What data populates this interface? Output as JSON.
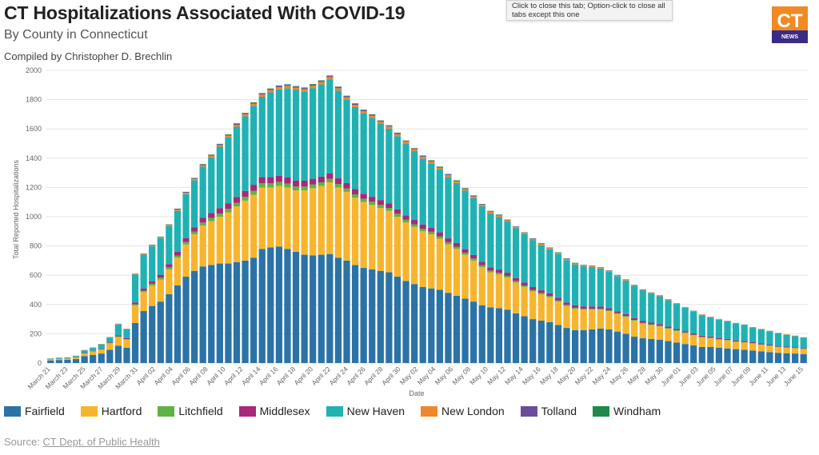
{
  "header": {
    "title": "CT Hospitalizations Associated With COVID-19",
    "subtitle": "By County in Connecticut",
    "credit": "Compiled by Christopher D. Brechlin"
  },
  "browser_tooltip": {
    "text": "Click to close this tab; Option-click to close all tabs except this one"
  },
  "logo": {
    "letters": "CT",
    "tagline": "NEWS",
    "colors": {
      "top": "#f08a24",
      "bottom": "#3b2a86"
    }
  },
  "source": {
    "prefix": "Source: ",
    "link_text": "CT Dept. of Public Health"
  },
  "chart_data": {
    "type": "bar",
    "stacked": true,
    "xlabel": "Date",
    "ylabel": "Total Reported Hospitalizations",
    "ylim": [
      0,
      2000
    ],
    "yticks": [
      0,
      200,
      400,
      600,
      800,
      1000,
      1200,
      1400,
      1600,
      1800,
      2000
    ],
    "grid": true,
    "legend_position": "bottom",
    "tick_labels": [
      "March 21",
      "March 23",
      "March 25",
      "March 27",
      "March 29",
      "March 31",
      "April 02",
      "April 04",
      "April 06",
      "April 08",
      "April 10",
      "April 12",
      "April 14",
      "April 16",
      "April 18",
      "April 20",
      "April 22",
      "April 24",
      "April 26",
      "April 28",
      "April 30",
      "May 02",
      "May 04",
      "May 06",
      "May 08",
      "May 10",
      "May 12",
      "May 14",
      "May 16",
      "May 18",
      "May 20",
      "May 22",
      "May 24",
      "May 26",
      "May 28",
      "May 30",
      "June 01",
      "June 03",
      "June 05",
      "June 07",
      "June 09",
      "June 11",
      "June 13",
      "June 15"
    ],
    "series": [
      {
        "name": "Fairfield",
        "color": "#2b73a6",
        "values": [
          18,
          21,
          22,
          27,
          48,
          56,
          65,
          90,
          118,
          105,
          274,
          355,
          390,
          420,
          470,
          530,
          590,
          630,
          660,
          670,
          680,
          680,
          690,
          700,
          720,
          780,
          790,
          795,
          780,
          760,
          740,
          735,
          740,
          745,
          720,
          700,
          670,
          650,
          640,
          630,
          620,
          590,
          560,
          540,
          520,
          510,
          500,
          480,
          460,
          440,
          420,
          395,
          380,
          375,
          365,
          340,
          320,
          300,
          290,
          280,
          260,
          240,
          225,
          225,
          230,
          235,
          230,
          215,
          200,
          180,
          170,
          165,
          160,
          150,
          140,
          130,
          120,
          110,
          110,
          105,
          100,
          95,
          90,
          85,
          80,
          75,
          70,
          67,
          65,
          60
        ]
      },
      {
        "name": "Hartford",
        "color": "#f7b52e",
        "values": [
          6,
          7,
          8,
          10,
          18,
          22,
          27,
          45,
          60,
          55,
          120,
          130,
          140,
          150,
          170,
          190,
          220,
          250,
          280,
          300,
          320,
          350,
          380,
          410,
          430,
          420,
          410,
          415,
          420,
          420,
          440,
          460,
          470,
          490,
          480,
          470,
          460,
          450,
          440,
          430,
          420,
          410,
          400,
          390,
          380,
          370,
          350,
          330,
          320,
          300,
          280,
          260,
          240,
          230,
          220,
          210,
          200,
          190,
          180,
          170,
          160,
          150,
          145,
          140,
          135,
          130,
          125,
          120,
          115,
          110,
          100,
          95,
          90,
          85,
          80,
          75,
          70,
          65,
          60,
          55,
          55,
          50,
          50,
          48,
          45,
          43,
          40,
          38,
          36,
          35
        ]
      },
      {
        "name": "Litchfield",
        "color": "#5fb346",
        "values": [
          1,
          1,
          1,
          1,
          2,
          2,
          3,
          4,
          5,
          4,
          8,
          10,
          12,
          13,
          14,
          15,
          17,
          18,
          20,
          22,
          22,
          24,
          25,
          26,
          27,
          28,
          28,
          28,
          27,
          26,
          26,
          25,
          25,
          24,
          24,
          23,
          23,
          22,
          22,
          21,
          20,
          20,
          19,
          18,
          18,
          17,
          16,
          16,
          15,
          14,
          14,
          13,
          12,
          12,
          11,
          11,
          10,
          10,
          9,
          9,
          8,
          8,
          8,
          7,
          7,
          7,
          6,
          6,
          6,
          5,
          5,
          5,
          5,
          4,
          4,
          4,
          4,
          4,
          3,
          3,
          3,
          3,
          3,
          3,
          3,
          2,
          2,
          2,
          2,
          2
        ]
      },
      {
        "name": "Middlesex",
        "color": "#a8287a",
        "values": [
          1,
          1,
          1,
          2,
          3,
          3,
          4,
          5,
          6,
          6,
          12,
          15,
          17,
          20,
          22,
          25,
          27,
          30,
          32,
          34,
          36,
          38,
          40,
          40,
          41,
          42,
          42,
          42,
          41,
          40,
          40,
          39,
          39,
          38,
          38,
          37,
          36,
          35,
          34,
          33,
          32,
          31,
          30,
          30,
          29,
          28,
          27,
          26,
          25,
          24,
          24,
          23,
          22,
          22,
          21,
          20,
          20,
          19,
          18,
          18,
          17,
          16,
          16,
          15,
          15,
          14,
          14,
          13,
          13,
          12,
          12,
          11,
          11,
          10,
          10,
          9,
          9,
          8,
          8,
          8,
          7,
          7,
          7,
          6,
          6,
          6,
          5,
          5,
          5,
          5
        ]
      },
      {
        "name": "New Haven",
        "color": "#20b1b3",
        "values": [
          5,
          6,
          6,
          8,
          15,
          20,
          28,
          30,
          75,
          60,
          190,
          230,
          240,
          250,
          260,
          280,
          300,
          320,
          350,
          380,
          420,
          450,
          480,
          510,
          540,
          550,
          580,
          590,
          610,
          620,
          610,
          620,
          630,
          640,
          600,
          570,
          560,
          550,
          540,
          520,
          510,
          500,
          490,
          470,
          450,
          440,
          430,
          420,
          410,
          400,
          390,
          380,
          370,
          360,
          350,
          340,
          330,
          320,
          310,
          300,
          300,
          290,
          280,
          275,
          270,
          260,
          250,
          240,
          230,
          220,
          210,
          200,
          190,
          180,
          170,
          160,
          150,
          140,
          130,
          125,
          120,
          115,
          110,
          100,
          95,
          90,
          85,
          80,
          75,
          70
        ]
      },
      {
        "name": "New London",
        "color": "#f0862a",
        "values": [
          1,
          1,
          1,
          1,
          1,
          2,
          2,
          2,
          3,
          3,
          4,
          5,
          5,
          6,
          7,
          8,
          9,
          10,
          10,
          11,
          12,
          12,
          13,
          14,
          14,
          15,
          15,
          16,
          16,
          16,
          16,
          17,
          17,
          17,
          16,
          16,
          16,
          15,
          15,
          15,
          14,
          14,
          14,
          13,
          13,
          13,
          12,
          12,
          12,
          11,
          11,
          10,
          10,
          10,
          9,
          9,
          9,
          8,
          8,
          8,
          7,
          7,
          7,
          6,
          6,
          6,
          5,
          5,
          5,
          5,
          4,
          4,
          4,
          4,
          3,
          3,
          3,
          3,
          3,
          3,
          2,
          2,
          2,
          2,
          2,
          2,
          2,
          2,
          2,
          2
        ]
      },
      {
        "name": "Tolland",
        "color": "#6a4c9c",
        "values": [
          0,
          0,
          0,
          1,
          1,
          1,
          1,
          1,
          1,
          1,
          2,
          2,
          3,
          3,
          3,
          4,
          4,
          4,
          5,
          5,
          5,
          5,
          6,
          6,
          6,
          6,
          7,
          7,
          7,
          7,
          7,
          7,
          7,
          7,
          7,
          7,
          6,
          6,
          6,
          6,
          6,
          6,
          5,
          5,
          5,
          5,
          5,
          5,
          4,
          4,
          4,
          4,
          4,
          4,
          3,
          3,
          3,
          3,
          3,
          3,
          3,
          3,
          2,
          2,
          2,
          2,
          2,
          2,
          2,
          2,
          2,
          2,
          2,
          2,
          1,
          1,
          1,
          1,
          1,
          1,
          1,
          1,
          1,
          1,
          1,
          1,
          1,
          1,
          1,
          1
        ]
      },
      {
        "name": "Windham",
        "color": "#1e8a4c",
        "values": [
          0,
          0,
          0,
          0,
          1,
          1,
          1,
          1,
          1,
          1,
          1,
          2,
          2,
          2,
          2,
          3,
          3,
          3,
          3,
          3,
          3,
          4,
          4,
          4,
          4,
          4,
          4,
          4,
          4,
          4,
          4,
          4,
          4,
          4,
          4,
          4,
          4,
          4,
          3,
          3,
          3,
          3,
          3,
          3,
          3,
          3,
          3,
          3,
          3,
          3,
          3,
          2,
          2,
          2,
          2,
          2,
          2,
          2,
          2,
          2,
          2,
          2,
          2,
          2,
          2,
          2,
          2,
          1,
          1,
          1,
          1,
          1,
          1,
          1,
          1,
          1,
          1,
          1,
          1,
          1,
          1,
          1,
          1,
          1,
          1,
          1,
          1,
          1,
          1,
          1
        ]
      }
    ]
  }
}
